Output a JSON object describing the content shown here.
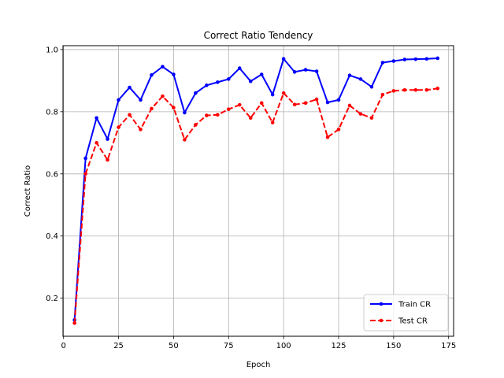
{
  "chart_data": {
    "type": "line",
    "title": "Correct Ratio Tendency",
    "xlabel": "Epoch",
    "ylabel": "Correct Ratio",
    "xlim": [
      -0.25,
      177.25
    ],
    "ylim": [
      0.0775,
      1.0125
    ],
    "xticks": [
      0,
      25,
      50,
      75,
      100,
      125,
      150,
      175
    ],
    "yticks": [
      0.2,
      0.4,
      0.6,
      0.8,
      1.0
    ],
    "ytick_labels": [
      "0.2",
      "0.4",
      "0.6",
      "0.8",
      "1.0"
    ],
    "grid": true,
    "legend_position": "lower-right",
    "x": [
      5,
      10,
      15,
      20,
      25,
      30,
      35,
      40,
      45,
      50,
      55,
      60,
      65,
      70,
      75,
      80,
      85,
      90,
      95,
      100,
      105,
      110,
      115,
      120,
      125,
      130,
      135,
      140,
      145,
      150,
      155,
      160,
      165,
      170
    ],
    "series": [
      {
        "name": "Train CR",
        "color": "#0000ff",
        "linestyle": "solid",
        "values": [
          0.13,
          0.65,
          0.78,
          0.712,
          0.838,
          0.878,
          0.838,
          0.918,
          0.945,
          0.92,
          0.797,
          0.86,
          0.885,
          0.895,
          0.905,
          0.94,
          0.898,
          0.92,
          0.855,
          0.97,
          0.928,
          0.935,
          0.93,
          0.83,
          0.838,
          0.917,
          0.905,
          0.88,
          0.958,
          0.963,
          0.968,
          0.969,
          0.97,
          0.972
        ]
      },
      {
        "name": "Test CR",
        "color": "#ff0000",
        "linestyle": "dashed",
        "values": [
          0.12,
          0.6,
          0.7,
          0.645,
          0.75,
          0.79,
          0.743,
          0.81,
          0.85,
          0.813,
          0.71,
          0.758,
          0.788,
          0.79,
          0.808,
          0.822,
          0.78,
          0.828,
          0.765,
          0.86,
          0.823,
          0.828,
          0.84,
          0.718,
          0.743,
          0.82,
          0.793,
          0.78,
          0.855,
          0.867,
          0.87,
          0.87,
          0.87,
          0.875
        ]
      }
    ]
  }
}
